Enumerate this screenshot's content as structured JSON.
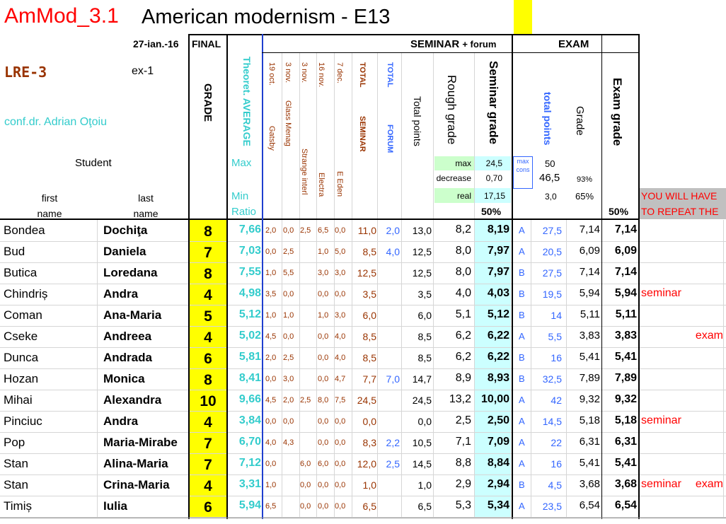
{
  "header": {
    "course_code": "AmMod_3.1",
    "course_title": "American modernism - E13",
    "date": "27-ian.-16",
    "final_label": "FINAL",
    "grade_label": "GRADE",
    "group": "LRE-3",
    "exam_session": "ex-1",
    "teacher": "conf.dr. Adrian Oţoiu",
    "student_label": "Student",
    "first_name_label": "first name",
    "last_name_label": "last name",
    "theoret_label": "Theoret. AVERAGE",
    "max_label": "Max",
    "min_label": "Min",
    "ratio_label": "Ratio",
    "seminar_title": "SEMINAR",
    "seminar_forum": "+ forum",
    "exam_title": "EXAM",
    "seminar_cols": [
      {
        "top": "19 oct.",
        "bottom": "Gatsby"
      },
      {
        "top": "3 nov.",
        "bottom": "Glass Menag"
      },
      {
        "top": "3 nov.",
        "bottom": "Strange interl"
      },
      {
        "top": "16 nov.",
        "bottom": "Electra"
      },
      {
        "top": "7 dec.",
        "bottom": "E Eden"
      }
    ],
    "total_seminar_top": "TOTAL",
    "total_seminar_bottom": "SEMINAR",
    "total_forum_top": "TOTAL",
    "total_forum_bottom": "FORUM",
    "total_points_label": "Total points",
    "rough_grade_label": "Rough grade",
    "seminar_grade_label": "Seminar grade",
    "max_key": "max",
    "max_val": "24,5",
    "decrease_key": "decrease",
    "decrease_val": "0,70",
    "real_key": "real",
    "real_val": "17,15",
    "seminar_pct": "50%",
    "max_cons": "max cons",
    "total_points_exam_label": "total points",
    "exam_grade_col_label": "Grade",
    "exam_total_50": "50",
    "exam_total_465": "46,5",
    "exam_total_30": "3,0",
    "exam_grade_93": "93%",
    "exam_grade_65": "65%",
    "exam_grade_label": "Exam grade",
    "exam_pct": "50%",
    "repeat_line1": "YOU WILL HAVE",
    "repeat_line2": "TO REPEAT THE"
  },
  "students": [
    {
      "first": "Bondea",
      "last": "Dochiţa",
      "final": "8",
      "avg": "7,66",
      "s1": "2,0",
      "s2": "0,0",
      "s3": "2,5",
      "s4": "6,5",
      "s5": "0,0",
      "tsem": "11,0",
      "tforum": "2,0",
      "tpts": "13,0",
      "rough": "8,2",
      "semgrade": "8,19",
      "exgroup": "A",
      "expts": "27,5",
      "exgrade": "7,14",
      "examgrade": "7,14",
      "rep1": "",
      "rep2": ""
    },
    {
      "first": "Bud",
      "last": "Daniela",
      "final": "7",
      "avg": "7,03",
      "s1": "0,0",
      "s2": "2,5",
      "s3": "",
      "s4": "1,0",
      "s5": "5,0",
      "tsem": "8,5",
      "tforum": "4,0",
      "tpts": "12,5",
      "rough": "8,0",
      "semgrade": "7,97",
      "exgroup": "A",
      "expts": "20,5",
      "exgrade": "6,09",
      "examgrade": "6,09",
      "rep1": "",
      "rep2": ""
    },
    {
      "first": "Butica",
      "last": "Loredana",
      "final": "8",
      "avg": "7,55",
      "s1": "1,0",
      "s2": "5,5",
      "s3": "",
      "s4": "3,0",
      "s5": "3,0",
      "tsem": "12,5",
      "tforum": "",
      "tpts": "12,5",
      "rough": "8,0",
      "semgrade": "7,97",
      "exgroup": "B",
      "expts": "27,5",
      "exgrade": "7,14",
      "examgrade": "7,14",
      "rep1": "",
      "rep2": ""
    },
    {
      "first": "Chindriș",
      "last": "Andra",
      "final": "4",
      "avg": "4,98",
      "s1": "3,5",
      "s2": "0,0",
      "s3": "",
      "s4": "0,0",
      "s5": "0,0",
      "tsem": "3,5",
      "tforum": "",
      "tpts": "3,5",
      "rough": "4,0",
      "semgrade": "4,03",
      "exgroup": "B",
      "expts": "19,5",
      "exgrade": "5,94",
      "examgrade": "5,94",
      "rep1": "seminar",
      "rep2": ""
    },
    {
      "first": "Coman",
      "last": "Ana-Maria",
      "final": "5",
      "avg": "5,12",
      "s1": "1,0",
      "s2": "1,0",
      "s3": "",
      "s4": "1,0",
      "s5": "3,0",
      "tsem": "6,0",
      "tforum": "",
      "tpts": "6,0",
      "rough": "5,1",
      "semgrade": "5,12",
      "exgroup": "B",
      "expts": "14",
      "exgrade": "5,11",
      "examgrade": "5,11",
      "rep1": "",
      "rep2": ""
    },
    {
      "first": "Cseke",
      "last": "Andreea",
      "final": "4",
      "avg": "5,02",
      "s1": "4,5",
      "s2": "0,0",
      "s3": "",
      "s4": "0,0",
      "s5": "4,0",
      "tsem": "8,5",
      "tforum": "",
      "tpts": "8,5",
      "rough": "6,2",
      "semgrade": "6,22",
      "exgroup": "A",
      "expts": "5,5",
      "exgrade": "3,83",
      "examgrade": "3,83",
      "rep1": "",
      "rep2": "exam"
    },
    {
      "first": "Dunca",
      "last": "Andrada",
      "final": "6",
      "avg": "5,81",
      "s1": "2,0",
      "s2": "2,5",
      "s3": "",
      "s4": "0,0",
      "s5": "4,0",
      "tsem": "8,5",
      "tforum": "",
      "tpts": "8,5",
      "rough": "6,2",
      "semgrade": "6,22",
      "exgroup": "B",
      "expts": "16",
      "exgrade": "5,41",
      "examgrade": "5,41",
      "rep1": "",
      "rep2": ""
    },
    {
      "first": "Hozan",
      "last": "Monica",
      "final": "8",
      "avg": "8,41",
      "s1": "0,0",
      "s2": "3,0",
      "s3": "",
      "s4": "0,0",
      "s5": "4,7",
      "tsem": "7,7",
      "tforum": "7,0",
      "tpts": "14,7",
      "rough": "8,9",
      "semgrade": "8,93",
      "exgroup": "B",
      "expts": "32,5",
      "exgrade": "7,89",
      "examgrade": "7,89",
      "rep1": "",
      "rep2": ""
    },
    {
      "first": "Mihai",
      "last": "Alexandra",
      "final": "10",
      "avg": "9,66",
      "s1": "4,5",
      "s2": "2,0",
      "s3": "2,5",
      "s4": "8,0",
      "s5": "7,5",
      "tsem": "24,5",
      "tforum": "",
      "tpts": "24,5",
      "rough": "13,2",
      "semgrade": "10,00",
      "exgroup": "A",
      "expts": "42",
      "exgrade": "9,32",
      "examgrade": "9,32",
      "rep1": "",
      "rep2": ""
    },
    {
      "first": "Pinciuc",
      "last": "Andra",
      "final": "4",
      "avg": "3,84",
      "s1": "0,0",
      "s2": "0,0",
      "s3": "",
      "s4": "0,0",
      "s5": "0,0",
      "tsem": "0,0",
      "tforum": "",
      "tpts": "0,0",
      "rough": "2,5",
      "semgrade": "2,50",
      "exgroup": "A",
      "expts": "14,5",
      "exgrade": "5,18",
      "examgrade": "5,18",
      "rep1": "seminar",
      "rep2": ""
    },
    {
      "first": "Pop",
      "last": "Maria-Mirabe",
      "final": "7",
      "avg": "6,70",
      "s1": "4,0",
      "s2": "4,3",
      "s3": "",
      "s4": "0,0",
      "s5": "0,0",
      "tsem": "8,3",
      "tforum": "2,2",
      "tpts": "10,5",
      "rough": "7,1",
      "semgrade": "7,09",
      "exgroup": "A",
      "expts": "22",
      "exgrade": "6,31",
      "examgrade": "6,31",
      "rep1": "",
      "rep2": ""
    },
    {
      "first": "Stan",
      "last": "Alina-Maria",
      "final": "7",
      "avg": "7,12",
      "s1": "0,0",
      "s2": "",
      "s3": "6,0",
      "s4": "6,0",
      "s5": "0,0",
      "tsem": "12,0",
      "tforum": "2,5",
      "tpts": "14,5",
      "rough": "8,8",
      "semgrade": "8,84",
      "exgroup": "A",
      "expts": "16",
      "exgrade": "5,41",
      "examgrade": "5,41",
      "rep1": "",
      "rep2": ""
    },
    {
      "first": "Stan",
      "last": "Crina-Maria",
      "final": "4",
      "avg": "3,31",
      "s1": "1,0",
      "s2": "",
      "s3": "0,0",
      "s4": "0,0",
      "s5": "0,0",
      "tsem": "1,0",
      "tforum": "",
      "tpts": "1,0",
      "rough": "2,9",
      "semgrade": "2,94",
      "exgroup": "B",
      "expts": "4,5",
      "exgrade": "3,68",
      "examgrade": "3,68",
      "rep1": "seminar",
      "rep2": "exam"
    },
    {
      "first": "Timiș",
      "last": "Iulia",
      "final": "6",
      "avg": "5,94",
      "s1": "6,5",
      "s2": "",
      "s3": "0,0",
      "s4": "0,0",
      "s5": "0,0",
      "tsem": "6,5",
      "tforum": "",
      "tpts": "6,5",
      "rough": "5,3",
      "semgrade": "5,34",
      "exgroup": "A",
      "expts": "23,5",
      "exgrade": "6,54",
      "examgrade": "6,54",
      "rep1": "",
      "rep2": ""
    }
  ]
}
